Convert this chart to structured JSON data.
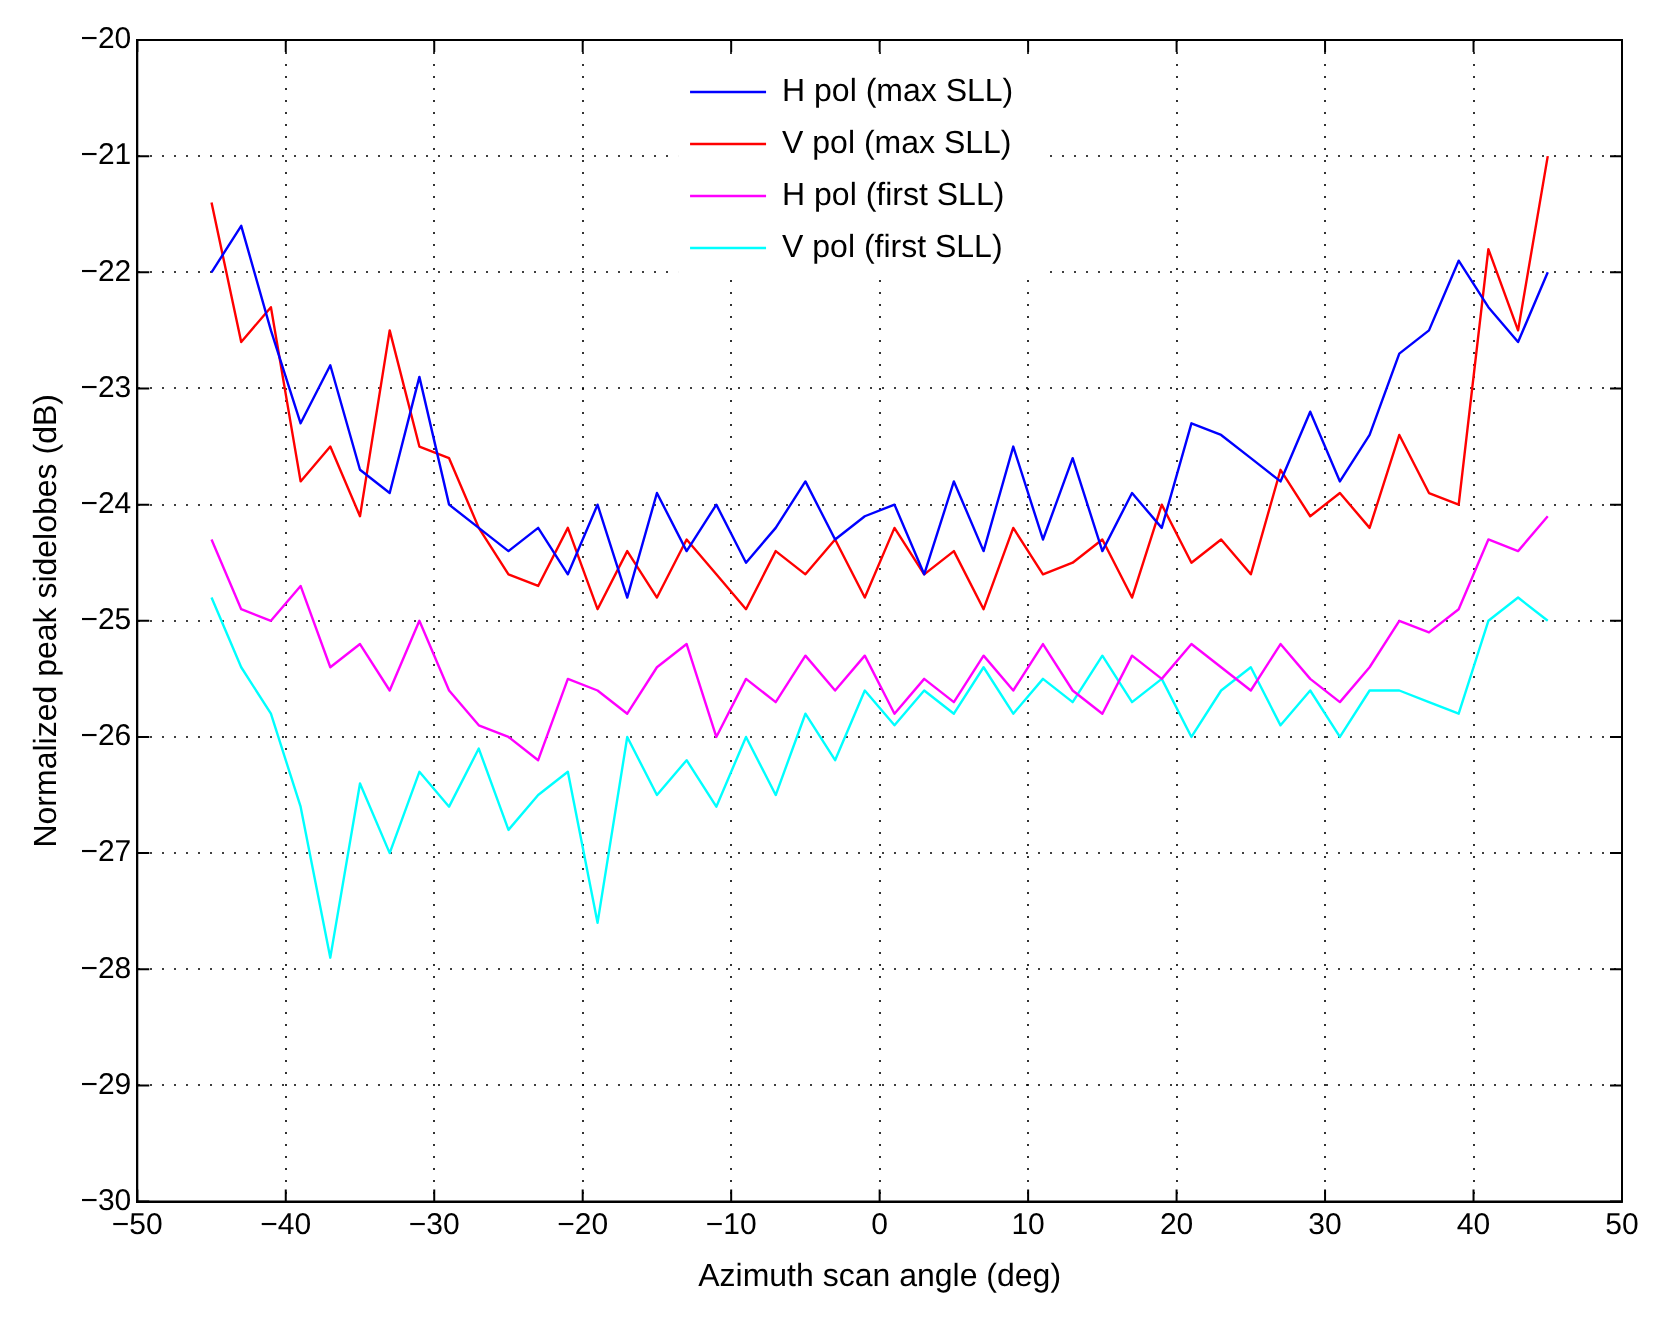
{
  "chart_data": {
    "type": "line",
    "xlabel": "Azimuth scan angle (deg)",
    "ylabel": "Normalized peak sidelobes (dB)",
    "x": [
      -45,
      -43,
      -41,
      -39,
      -37,
      -35,
      -33,
      -31,
      -29,
      -27,
      -25,
      -23,
      -21,
      -19,
      -17,
      -15,
      -13,
      -11,
      -9,
      -7,
      -5,
      -3,
      -1,
      1,
      3,
      5,
      7,
      9,
      11,
      13,
      15,
      17,
      19,
      21,
      23,
      25,
      27,
      29,
      31,
      33,
      35,
      37,
      39,
      41,
      43,
      45
    ],
    "xlim": [
      -50,
      50
    ],
    "xticks": [
      -50,
      -40,
      -30,
      -20,
      -10,
      0,
      10,
      20,
      30,
      40,
      50
    ],
    "ylim": [
      -30,
      -20
    ],
    "yticks": [
      -30,
      -29,
      -28,
      -27,
      -26,
      -25,
      -24,
      -23,
      -22,
      -21,
      -20
    ],
    "grid": true,
    "legend": "top",
    "line_style": "solid",
    "marker": "none",
    "series": [
      {
        "name": "H pol (max SLL)",
        "color": "#0000ff",
        "values": [
          -22.0,
          -21.6,
          -22.5,
          -23.3,
          -22.8,
          -23.7,
          -23.9,
          -22.9,
          -24.0,
          -24.2,
          -24.4,
          -24.2,
          -24.6,
          -24.0,
          -24.8,
          -23.9,
          -24.4,
          -24.0,
          -24.5,
          -24.2,
          -23.8,
          -24.3,
          -24.1,
          -24.0,
          -24.6,
          -23.8,
          -24.4,
          -23.5,
          -24.3,
          -23.6,
          -24.4,
          -23.9,
          -24.2,
          -23.3,
          -23.4,
          -23.6,
          -23.8,
          -23.2,
          -23.8,
          -23.4,
          -22.7,
          -22.5,
          -21.9,
          -22.3,
          -22.6,
          -22.0
        ]
      },
      {
        "name": "V pol (max SLL)",
        "color": "#ff0000",
        "values": [
          -21.4,
          -22.6,
          -22.3,
          -23.8,
          -23.5,
          -24.1,
          -22.5,
          -23.5,
          -23.6,
          -24.2,
          -24.6,
          -24.7,
          -24.2,
          -24.9,
          -24.4,
          -24.8,
          -24.3,
          -24.6,
          -24.9,
          -24.4,
          -24.6,
          -24.3,
          -24.8,
          -24.2,
          -24.6,
          -24.4,
          -24.9,
          -24.2,
          -24.6,
          -24.5,
          -24.3,
          -24.8,
          -24.0,
          -24.5,
          -24.3,
          -24.6,
          -23.7,
          -24.1,
          -23.9,
          -24.2,
          -23.4,
          -23.9,
          -24.0,
          -21.8,
          -22.5,
          -21.0
        ]
      },
      {
        "name": "H pol (first SLL)",
        "color": "#ff00ff",
        "values": [
          -24.3,
          -24.9,
          -25.0,
          -24.7,
          -25.4,
          -25.2,
          -25.6,
          -25.0,
          -25.6,
          -25.9,
          -26.0,
          -26.2,
          -25.5,
          -25.6,
          -25.8,
          -25.4,
          -25.2,
          -26.0,
          -25.5,
          -25.7,
          -25.3,
          -25.6,
          -25.3,
          -25.8,
          -25.5,
          -25.7,
          -25.3,
          -25.6,
          -25.2,
          -25.6,
          -25.8,
          -25.3,
          -25.5,
          -25.2,
          -25.4,
          -25.6,
          -25.2,
          -25.5,
          -25.7,
          -25.4,
          -25.0,
          -25.1,
          -24.9,
          -24.3,
          -24.4,
          -24.1
        ]
      },
      {
        "name": "V pol (first SLL)",
        "color": "#00ffff",
        "values": [
          -24.8,
          -25.4,
          -25.8,
          -26.6,
          -27.9,
          -26.4,
          -27.0,
          -26.3,
          -26.6,
          -26.1,
          -26.8,
          -26.5,
          -26.3,
          -27.6,
          -26.0,
          -26.5,
          -26.2,
          -26.6,
          -26.0,
          -26.5,
          -25.8,
          -26.2,
          -25.6,
          -25.9,
          -25.6,
          -25.8,
          -25.4,
          -25.8,
          -25.5,
          -25.7,
          -25.3,
          -25.7,
          -25.5,
          -26.0,
          -25.6,
          -25.4,
          -25.9,
          -25.6,
          -26.0,
          -25.6,
          -25.6,
          -25.7,
          -25.8,
          -25.0,
          -24.8,
          -25.0
        ]
      }
    ]
  }
}
